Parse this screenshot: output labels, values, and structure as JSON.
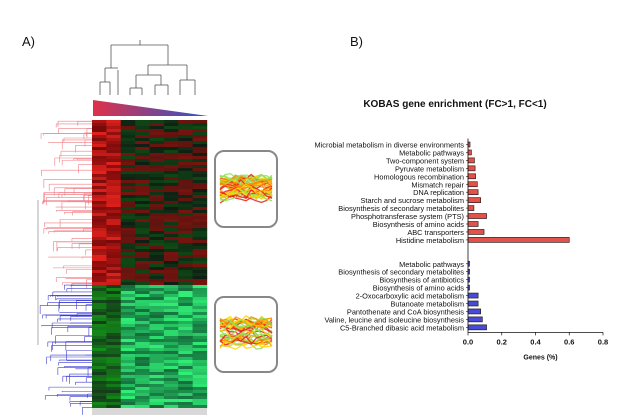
{
  "panels": {
    "a_label": "A)",
    "b_label": "B)"
  },
  "heatmap": {
    "gradient_colors": [
      "#e0304a",
      "#2c56c8"
    ],
    "cluster_colors": {
      "up": "#f07c84",
      "down": "#3b3bd0"
    },
    "inset_colors": [
      "#e8231a",
      "#ff8a00",
      "#ffd200",
      "#8fe05a"
    ]
  },
  "chart_data": {
    "type": "bar",
    "orientation": "horizontal",
    "title": "KOBAS gene enrichment (FC>1, FC<1)",
    "xlabel": "Genes (%)",
    "ylabel": "",
    "xlim": [
      0.0,
      0.8
    ],
    "xticks": [
      "0.0",
      "0.2",
      "0.4",
      "0.6",
      "0.8"
    ],
    "colors": {
      "up": "#e0524a",
      "down": "#4a4ad8"
    },
    "series": [
      {
        "name": "FC>1",
        "categories": [
          "Microbial metabolism in diverse environments",
          "Metabolic pathways",
          "Two-component system",
          "Pyruvate metabolism",
          "Homologous recombination",
          "Mismatch repair",
          "DNA replication",
          "Starch and sucrose metabolism",
          "Biosynthesis of secondary metabolites",
          "Phosphotransferase system (PTS)",
          "Biosynthesis of amino acids",
          "ABC transporters",
          "Histidine metabolism"
        ],
        "values": [
          0.012,
          0.02,
          0.038,
          0.042,
          0.045,
          0.055,
          0.06,
          0.075,
          0.035,
          0.11,
          0.06,
          0.095,
          0.6
        ]
      },
      {
        "name": "FC<1",
        "categories": [
          "Metabolic pathways",
          "Biosynthesis of secondary metabolites",
          "Biosynthesis of antibiotics",
          "Biosynthesis of amino acids",
          "2-Oxocarboxylic acid metabolism",
          "Butanoate metabolism",
          "Pantothenate and CoA biosynthesis",
          "Valine, leucine and isoleucine biosynthesis",
          "C5-Branched dibasic acid metabolism"
        ],
        "values": [
          0.004,
          0.004,
          0.006,
          0.008,
          0.06,
          0.06,
          0.075,
          0.085,
          0.11
        ]
      }
    ]
  }
}
